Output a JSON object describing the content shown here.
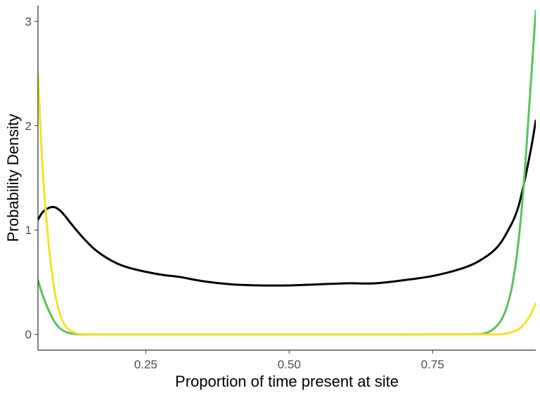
{
  "chart_data": {
    "type": "line",
    "title": "",
    "xlabel": "Proportion of time present at site",
    "ylabel": "Probability Density",
    "xlim": [
      0.062,
      0.93
    ],
    "ylim": [
      -0.15,
      3.15
    ],
    "x_ticks": [
      0.25,
      0.5,
      0.75
    ],
    "x_tick_labels": [
      "0.25",
      "0.50",
      "0.75"
    ],
    "y_ticks": [
      0,
      1,
      2,
      3
    ],
    "y_tick_labels": [
      "0",
      "1",
      "2",
      "3"
    ],
    "grid": false,
    "legend": "none",
    "series": [
      {
        "color": "#000000",
        "x": [
          0.062,
          0.07,
          0.08,
          0.09,
          0.1,
          0.11,
          0.12,
          0.14,
          0.16,
          0.18,
          0.2,
          0.22,
          0.25,
          0.28,
          0.31,
          0.35,
          0.4,
          0.45,
          0.5,
          0.55,
          0.6,
          0.65,
          0.7,
          0.75,
          0.8,
          0.83,
          0.86,
          0.88,
          0.9,
          0.92,
          0.93
        ],
        "y": [
          1.1,
          1.17,
          1.21,
          1.22,
          1.19,
          1.13,
          1.06,
          0.93,
          0.82,
          0.74,
          0.68,
          0.64,
          0.6,
          0.57,
          0.55,
          0.51,
          0.48,
          0.47,
          0.47,
          0.48,
          0.49,
          0.49,
          0.52,
          0.56,
          0.63,
          0.7,
          0.82,
          0.98,
          1.23,
          1.73,
          2.05
        ]
      },
      {
        "color": "#5cc05e",
        "x": [
          0.062,
          0.07,
          0.08,
          0.09,
          0.1,
          0.11,
          0.12,
          0.13,
          0.14,
          0.15,
          0.18,
          0.3,
          0.5,
          0.7,
          0.82,
          0.84,
          0.85,
          0.86,
          0.87,
          0.88,
          0.89,
          0.9,
          0.91,
          0.92,
          0.93
        ],
        "y": [
          0.52,
          0.38,
          0.24,
          0.13,
          0.06,
          0.025,
          0.01,
          0.003,
          0.001,
          0.0,
          0.0,
          0.0,
          0.0,
          0.0,
          0.002,
          0.01,
          0.03,
          0.07,
          0.14,
          0.27,
          0.5,
          0.9,
          1.5,
          2.3,
          3.1
        ]
      },
      {
        "color": "#f5e22b",
        "x": [
          0.062,
          0.07,
          0.08,
          0.09,
          0.1,
          0.11,
          0.12,
          0.13,
          0.14,
          0.15,
          0.17,
          0.3,
          0.5,
          0.7,
          0.85,
          0.87,
          0.88,
          0.89,
          0.9,
          0.91,
          0.92,
          0.93
        ],
        "y": [
          2.5,
          1.6,
          0.9,
          0.45,
          0.2,
          0.08,
          0.03,
          0.01,
          0.003,
          0.001,
          0.0,
          0.0,
          0.0,
          0.0,
          0.0,
          0.003,
          0.01,
          0.025,
          0.05,
          0.1,
          0.18,
          0.3
        ]
      }
    ]
  }
}
